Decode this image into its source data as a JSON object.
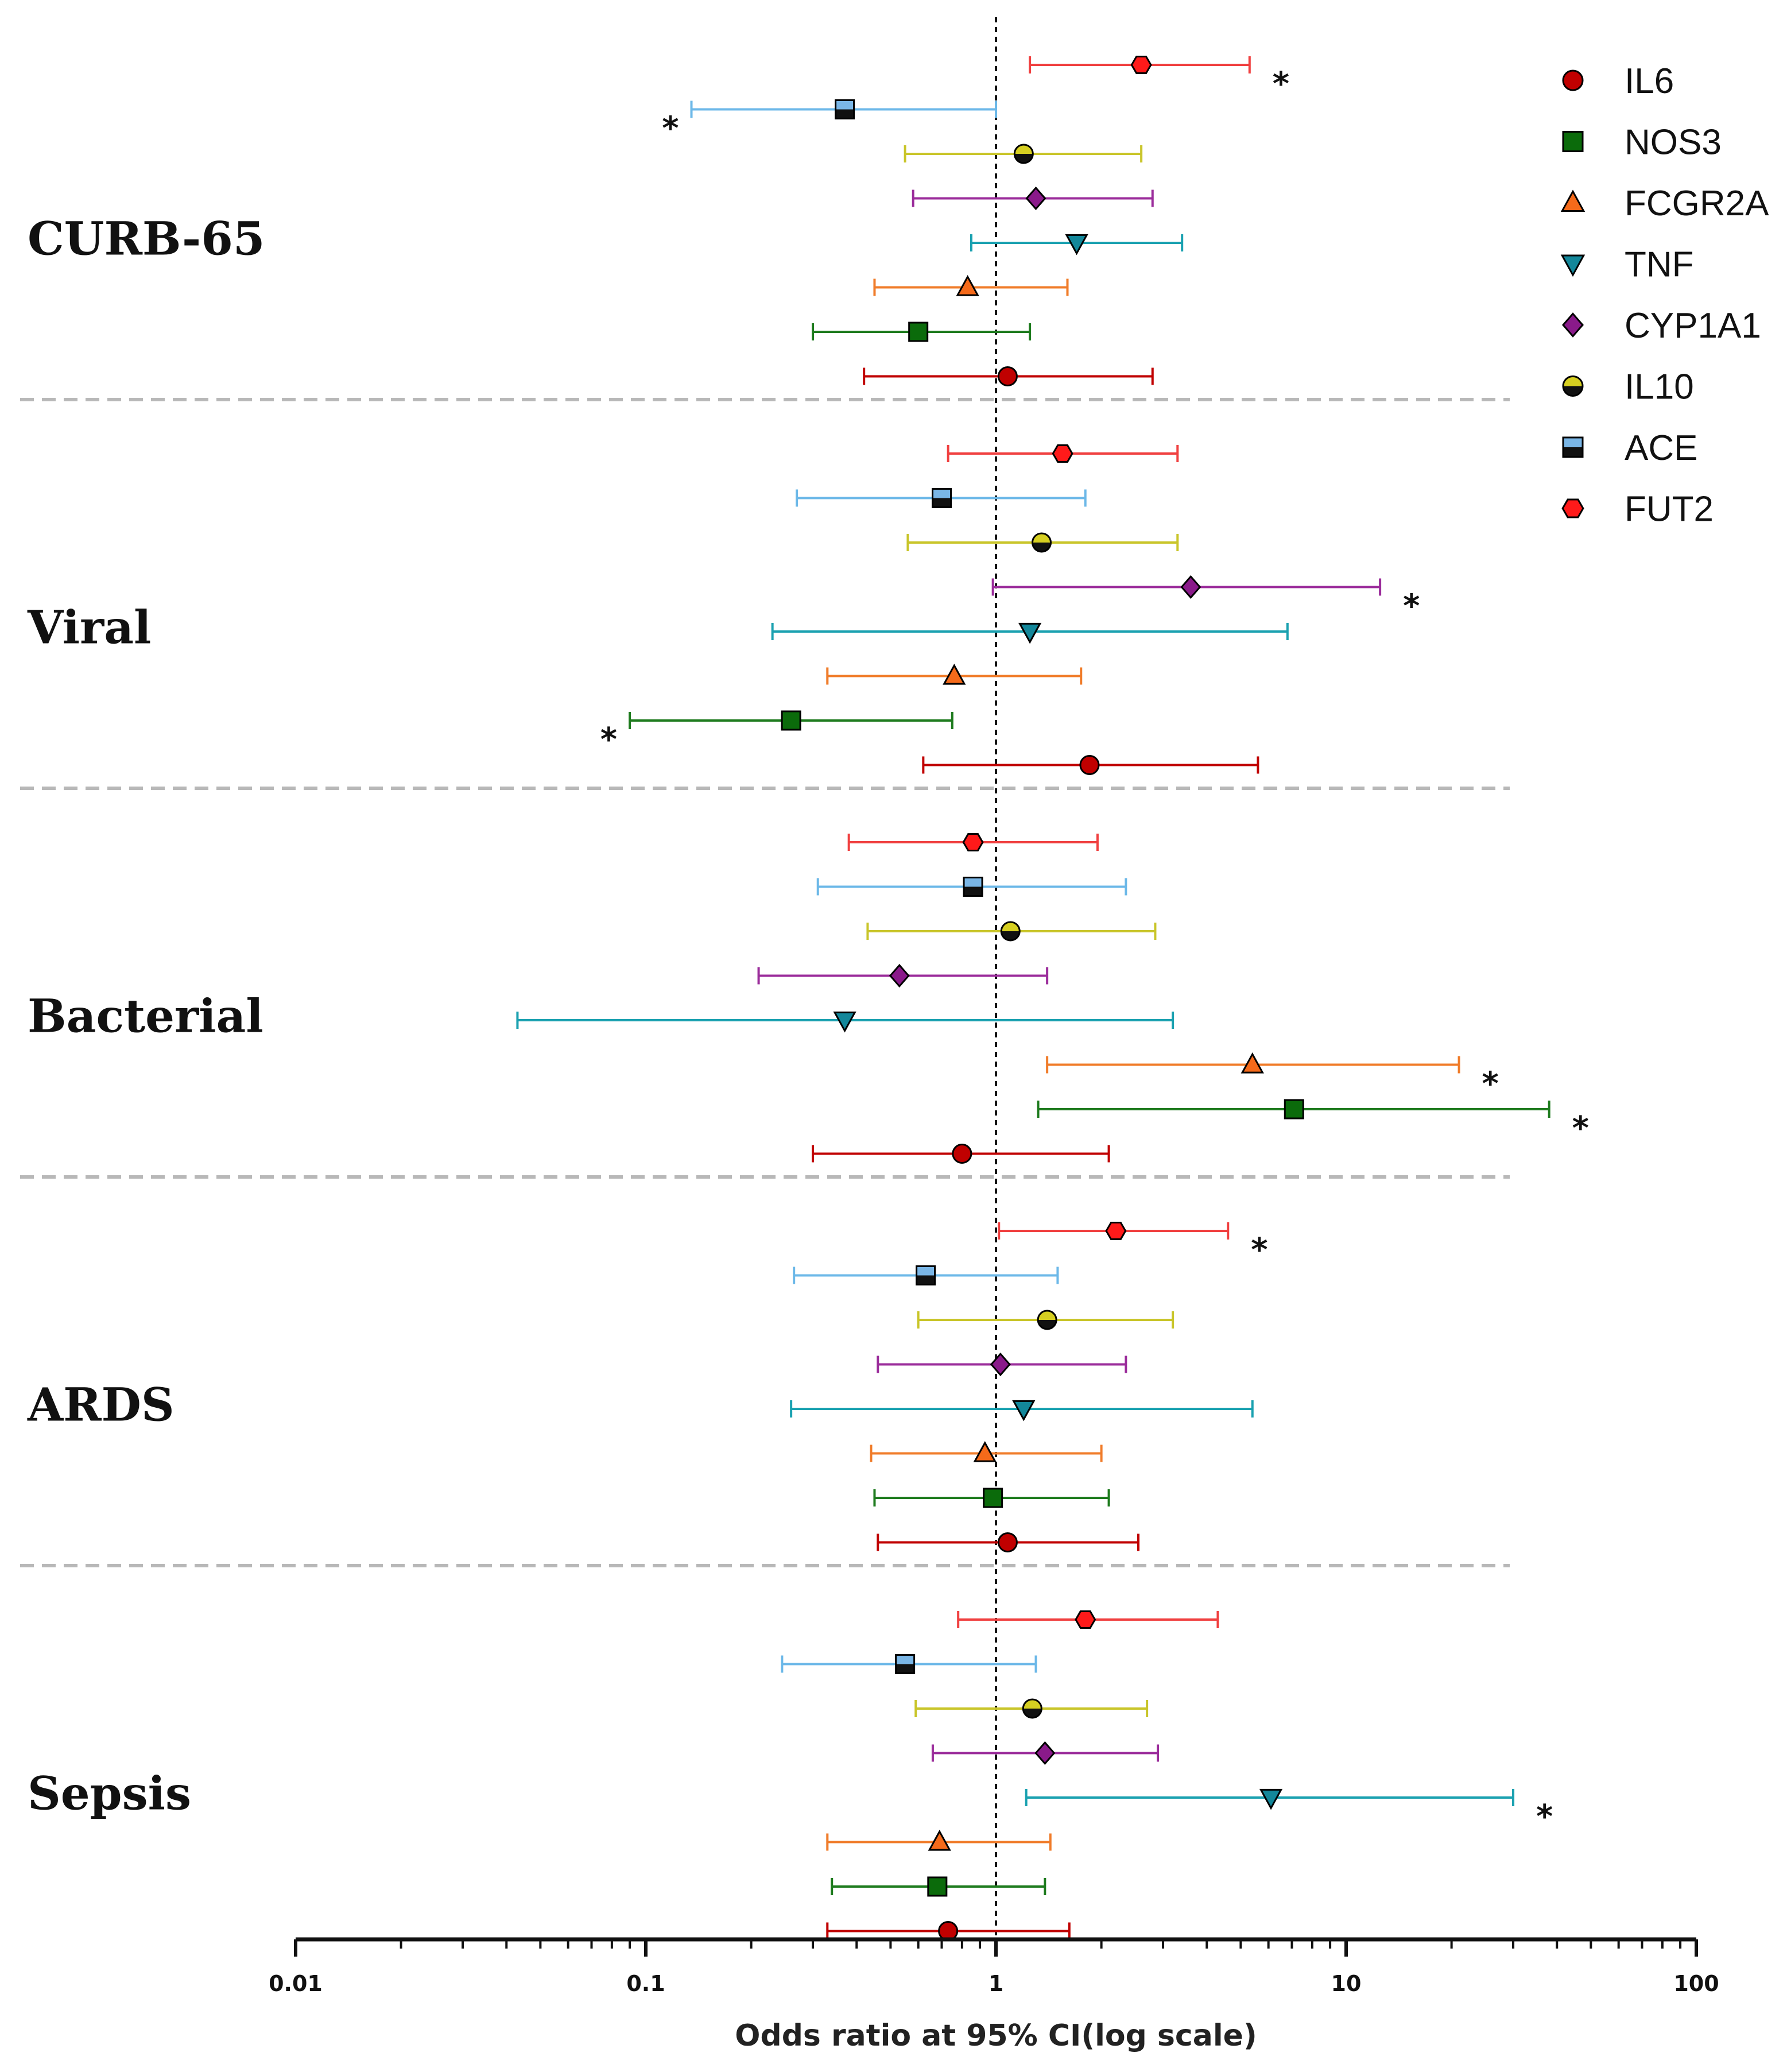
{
  "chart_data": {
    "type": "forest",
    "xlabel": "Odds ratio at 95% CI(log scale)",
    "x_scale": "log",
    "xlim": [
      0.01,
      100
    ],
    "x_ticks": [
      {
        "value": 0.01,
        "label": "0.01"
      },
      {
        "value": 0.1,
        "label": "0.1"
      },
      {
        "value": 1,
        "label": "1"
      },
      {
        "value": 10,
        "label": "10"
      },
      {
        "value": 100,
        "label": "100"
      }
    ],
    "reference_line": 1,
    "significance_marker": "*",
    "genes": [
      {
        "name": "IL6",
        "color": "#c00000",
        "marker": "circle",
        "fill": "#c00000"
      },
      {
        "name": "NOS3",
        "color": "#1e7b1e",
        "marker": "square",
        "fill": "#0b6b0b"
      },
      {
        "name": "FCGR2A",
        "color": "#f07c2a",
        "marker": "triangle-up",
        "fill": "#f56a1a"
      },
      {
        "name": "TNF",
        "color": "#1aa1b0",
        "marker": "triangle-down",
        "fill": "#13879a"
      },
      {
        "name": "CYP1A1",
        "color": "#9b2c9b",
        "marker": "diamond",
        "fill": "#8a1a8a"
      },
      {
        "name": "IL10",
        "color": "#c9c52a",
        "marker": "circle-half",
        "fill": "#d6cf21"
      },
      {
        "name": "ACE",
        "color": "#6cb8e8",
        "marker": "square-half",
        "fill": "#7ab6e6"
      },
      {
        "name": "FUT2",
        "color": "#f04040",
        "marker": "hexagon",
        "fill": "#ff1a1a"
      }
    ],
    "groups": [
      {
        "label": "CURB-65",
        "rows": [
          {
            "gene": "FUT2",
            "or": 2.6,
            "lo": 1.25,
            "hi": 5.3,
            "sig": true
          },
          {
            "gene": "ACE",
            "or": 0.37,
            "lo": 0.135,
            "hi": 1.0,
            "sig": true
          },
          {
            "gene": "IL10",
            "or": 1.2,
            "lo": 0.55,
            "hi": 2.6,
            "sig": false
          },
          {
            "gene": "CYP1A1",
            "or": 1.3,
            "lo": 0.58,
            "hi": 2.8,
            "sig": false
          },
          {
            "gene": "TNF",
            "or": 1.7,
            "lo": 0.85,
            "hi": 3.4,
            "sig": false
          },
          {
            "gene": "FCGR2A",
            "or": 0.83,
            "lo": 0.45,
            "hi": 1.6,
            "sig": false
          },
          {
            "gene": "NOS3",
            "or": 0.6,
            "lo": 0.3,
            "hi": 1.25,
            "sig": false
          },
          {
            "gene": "IL6",
            "or": 1.08,
            "lo": 0.42,
            "hi": 2.8,
            "sig": false
          }
        ]
      },
      {
        "label": "Viral",
        "rows": [
          {
            "gene": "FUT2",
            "or": 1.55,
            "lo": 0.73,
            "hi": 3.3,
            "sig": false
          },
          {
            "gene": "ACE",
            "or": 0.7,
            "lo": 0.27,
            "hi": 1.8,
            "sig": false
          },
          {
            "gene": "IL10",
            "or": 1.35,
            "lo": 0.56,
            "hi": 3.3,
            "sig": false
          },
          {
            "gene": "CYP1A1",
            "or": 3.6,
            "lo": 0.98,
            "hi": 12.5,
            "sig": true
          },
          {
            "gene": "TNF",
            "or": 1.25,
            "lo": 0.23,
            "hi": 6.8,
            "sig": false
          },
          {
            "gene": "FCGR2A",
            "or": 0.76,
            "lo": 0.33,
            "hi": 1.75,
            "sig": false
          },
          {
            "gene": "NOS3",
            "or": 0.26,
            "lo": 0.09,
            "hi": 0.75,
            "sig": true
          },
          {
            "gene": "IL6",
            "or": 1.85,
            "lo": 0.62,
            "hi": 5.6,
            "sig": false
          }
        ]
      },
      {
        "label": "Bacterial",
        "rows": [
          {
            "gene": "FUT2",
            "or": 0.86,
            "lo": 0.38,
            "hi": 1.95,
            "sig": false
          },
          {
            "gene": "ACE",
            "or": 0.86,
            "lo": 0.31,
            "hi": 2.35,
            "sig": false
          },
          {
            "gene": "IL10",
            "or": 1.1,
            "lo": 0.43,
            "hi": 2.85,
            "sig": false
          },
          {
            "gene": "CYP1A1",
            "or": 0.53,
            "lo": 0.21,
            "hi": 1.4,
            "sig": false
          },
          {
            "gene": "TNF",
            "or": 0.37,
            "lo": 0.043,
            "hi": 3.2,
            "sig": false
          },
          {
            "gene": "FCGR2A",
            "or": 5.4,
            "lo": 1.4,
            "hi": 21,
            "sig": true
          },
          {
            "gene": "NOS3",
            "or": 7.1,
            "lo": 1.32,
            "hi": 38,
            "sig": true
          },
          {
            "gene": "IL6",
            "or": 0.8,
            "lo": 0.3,
            "hi": 2.1,
            "sig": false
          }
        ]
      },
      {
        "label": "ARDS",
        "rows": [
          {
            "gene": "FUT2",
            "or": 2.2,
            "lo": 1.02,
            "hi": 4.6,
            "sig": true
          },
          {
            "gene": "ACE",
            "or": 0.63,
            "lo": 0.265,
            "hi": 1.5,
            "sig": false
          },
          {
            "gene": "IL10",
            "or": 1.4,
            "lo": 0.6,
            "hi": 3.2,
            "sig": false
          },
          {
            "gene": "CYP1A1",
            "or": 1.03,
            "lo": 0.46,
            "hi": 2.35,
            "sig": false
          },
          {
            "gene": "TNF",
            "or": 1.2,
            "lo": 0.26,
            "hi": 5.4,
            "sig": false
          },
          {
            "gene": "FCGR2A",
            "or": 0.93,
            "lo": 0.44,
            "hi": 2.0,
            "sig": false
          },
          {
            "gene": "NOS3",
            "or": 0.98,
            "lo": 0.45,
            "hi": 2.1,
            "sig": false
          },
          {
            "gene": "IL6",
            "or": 1.08,
            "lo": 0.46,
            "hi": 2.55,
            "sig": false
          }
        ]
      },
      {
        "label": "Sepsis",
        "rows": [
          {
            "gene": "FUT2",
            "or": 1.8,
            "lo": 0.78,
            "hi": 4.3,
            "sig": false
          },
          {
            "gene": "ACE",
            "or": 0.55,
            "lo": 0.245,
            "hi": 1.3,
            "sig": false
          },
          {
            "gene": "IL10",
            "or": 1.27,
            "lo": 0.59,
            "hi": 2.7,
            "sig": false
          },
          {
            "gene": "CYP1A1",
            "or": 1.38,
            "lo": 0.66,
            "hi": 2.9,
            "sig": false
          },
          {
            "gene": "TNF",
            "or": 6.1,
            "lo": 1.22,
            "hi": 30,
            "sig": true
          },
          {
            "gene": "FCGR2A",
            "or": 0.69,
            "lo": 0.33,
            "hi": 1.43,
            "sig": false
          },
          {
            "gene": "NOS3",
            "or": 0.68,
            "lo": 0.34,
            "hi": 1.38,
            "sig": false
          },
          {
            "gene": "IL6",
            "or": 0.73,
            "lo": 0.33,
            "hi": 1.62,
            "sig": false
          }
        ]
      }
    ]
  }
}
